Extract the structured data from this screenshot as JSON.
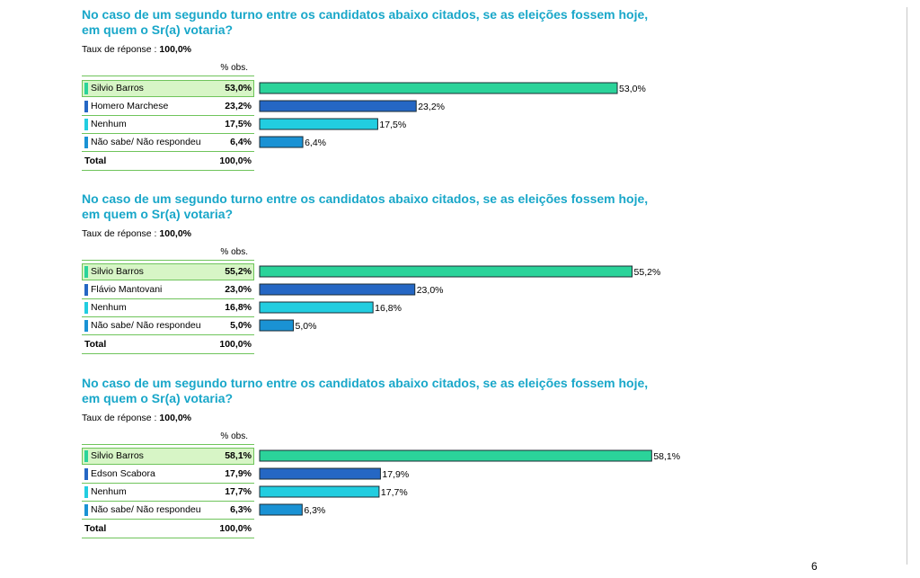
{
  "page_number": "6",
  "colors": {
    "title": "#19a7c9",
    "highlight_bg": "#d7f5c6",
    "bar_0": "#2bd39a",
    "bar_1": "#2567c4",
    "bar_2": "#22cde0",
    "bar_3": "#1a92d4"
  },
  "chart_data": [
    {
      "type": "bar",
      "title": "No caso de um segundo turno entre os candidatos abaixo citados, se as eleições fossem hoje, em quem o Sr(a) votaria?",
      "response_rate_label": "Taux de réponse : ",
      "response_rate_value": "100,0%",
      "column_header": "% obs.",
      "categories": [
        "Silvio Barros",
        "Homero Marchese",
        "Nenhum",
        "Não sabe/ Não respondeu"
      ],
      "values": [
        53.0,
        23.2,
        17.5,
        6.4
      ],
      "value_labels": [
        "53,0%",
        "23,2%",
        "17,5%",
        "6,4%"
      ],
      "total_label": "Total",
      "total_value": "100,0%",
      "xlim": [
        0,
        55
      ]
    },
    {
      "type": "bar",
      "title": "No caso de um segundo turno entre os candidatos abaixo citados, se as eleições fossem hoje, em quem o Sr(a) votaria?",
      "response_rate_label": "Taux de réponse : ",
      "response_rate_value": "100,0%",
      "column_header": "% obs.",
      "categories": [
        "Silvio Barros",
        "Flávio Mantovani",
        "Nenhum",
        "Não sabe/ Não respondeu"
      ],
      "values": [
        55.2,
        23.0,
        16.8,
        5.0
      ],
      "value_labels": [
        "55,2%",
        "23,0%",
        "16,8%",
        "5,0%"
      ],
      "total_label": "Total",
      "total_value": "100,0%",
      "xlim": [
        0,
        55.2
      ]
    },
    {
      "type": "bar",
      "title": "No caso de um segundo turno entre os candidatos abaixo citados, se as eleições fossem hoje, em quem o Sr(a) votaria?",
      "response_rate_label": "Taux de réponse : ",
      "response_rate_value": "100,0%",
      "column_header": "% obs.",
      "categories": [
        "Silvio Barros",
        "Edson Scabora",
        "Nenhum",
        "Não sabe/ Não respondeu"
      ],
      "values": [
        58.1,
        17.9,
        17.7,
        6.3
      ],
      "value_labels": [
        "58,1%",
        "17,9%",
        "17,7%",
        "6,3%"
      ],
      "total_label": "Total",
      "total_value": "100,0%",
      "xlim": [
        0,
        58.1
      ]
    }
  ]
}
